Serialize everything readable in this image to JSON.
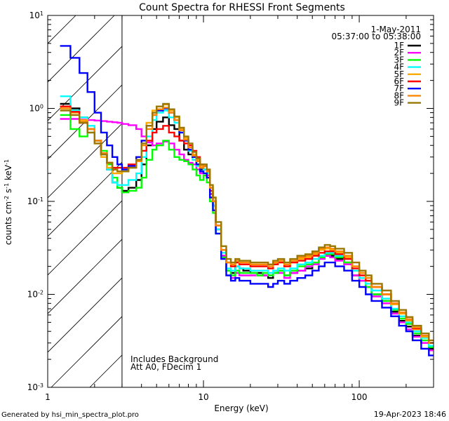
{
  "chart_data": {
    "type": "line",
    "title": "Count Spectra for RHESSI Front Segments",
    "xlabel": "Energy (keV)",
    "ylabel_parts": [
      "counts cm",
      "-2",
      " s",
      "-1",
      " keV",
      "-1"
    ],
    "xscale": "log",
    "yscale": "log",
    "xlim": [
      1,
      300
    ],
    "ylim": [
      0.001,
      10
    ],
    "x_ticks": [
      {
        "v": 1,
        "label": "1"
      },
      {
        "v": 10,
        "label": "10"
      },
      {
        "v": 100,
        "label": "100"
      }
    ],
    "y_ticks": [
      {
        "v": 0.001,
        "base": "10",
        "exp": "-3"
      },
      {
        "v": 0.01,
        "base": "10",
        "exp": "-2"
      },
      {
        "v": 0.1,
        "base": "10",
        "exp": "-1"
      },
      {
        "v": 1,
        "base": "10",
        "exp": "0"
      },
      {
        "v": 10,
        "base": "10",
        "exp": "1"
      }
    ],
    "excluded_region": {
      "x": [
        1,
        3
      ],
      "label": "hatched below 3 keV"
    },
    "annotations": {
      "date": "1-May-2011",
      "time_range": "05:37:00 to 05:38:00",
      "background_note": "Includes Background",
      "att_note": "Att A0, FDecim 1"
    },
    "legend_placement": "top-right",
    "energy_edges": [
      1,
      1.2,
      1.4,
      1.6,
      1.8,
      2,
      2.2,
      2.4,
      2.6,
      2.8,
      3,
      3.3,
      3.7,
      4,
      4.3,
      4.7,
      5,
      5.5,
      6,
      6.5,
      7,
      7.5,
      8,
      8.5,
      9,
      9.5,
      10,
      10.5,
      11,
      11.5,
      12,
      13,
      14,
      15,
      16,
      17,
      18,
      20,
      22,
      24,
      26,
      28,
      30,
      33,
      36,
      40,
      45,
      50,
      55,
      60,
      65,
      70,
      80,
      90,
      100,
      110,
      120,
      140,
      160,
      180,
      200,
      220,
      250,
      280,
      300
    ],
    "series": [
      {
        "name": "1F",
        "color": "#000000",
        "values": [
          null,
          1.12,
          1.0,
          0.8,
          0.6,
          0.45,
          0.32,
          0.22,
          0.16,
          0.14,
          0.13,
          0.14,
          0.17,
          0.25,
          0.4,
          0.6,
          0.72,
          0.8,
          0.66,
          0.6,
          0.45,
          0.36,
          0.32,
          0.3,
          0.25,
          0.22,
          0.24,
          0.2,
          0.12,
          0.09,
          0.05,
          0.026,
          0.018,
          0.017,
          0.02,
          0.019,
          0.018,
          0.017,
          0.017,
          0.016,
          0.015,
          0.017,
          0.018,
          0.016,
          0.017,
          0.018,
          0.019,
          0.021,
          0.025,
          0.026,
          0.026,
          0.024,
          0.022,
          0.016,
          0.014,
          0.012,
          0.01,
          0.0085,
          0.0065,
          0.0052,
          0.0045,
          0.0036,
          0.003,
          0.0026
        ]
      },
      {
        "name": "2F",
        "color": "#ff00ff",
        "values": [
          null,
          0.77,
          0.77,
          0.76,
          0.75,
          0.74,
          0.73,
          0.72,
          0.71,
          0.7,
          0.68,
          0.66,
          0.6,
          0.5,
          0.43,
          0.4,
          0.42,
          0.44,
          0.42,
          0.36,
          0.32,
          0.28,
          0.26,
          0.25,
          0.22,
          0.2,
          0.22,
          0.19,
          0.12,
          0.09,
          0.05,
          0.026,
          0.018,
          0.015,
          0.017,
          0.016,
          0.016,
          0.016,
          0.016,
          0.016,
          0.016,
          0.017,
          0.017,
          0.015,
          0.017,
          0.018,
          0.02,
          0.021,
          0.024,
          0.026,
          0.025,
          0.023,
          0.021,
          0.016,
          0.014,
          0.012,
          0.0095,
          0.008,
          0.0062,
          0.005,
          0.0042,
          0.0035,
          0.003,
          0.0025
        ]
      },
      {
        "name": "3F",
        "color": "#00ff00",
        "values": [
          null,
          0.85,
          0.6,
          0.5,
          0.55,
          0.45,
          0.35,
          0.25,
          0.18,
          0.14,
          0.125,
          0.13,
          0.14,
          0.18,
          0.28,
          0.36,
          0.4,
          0.45,
          0.36,
          0.3,
          0.28,
          0.27,
          0.25,
          0.22,
          0.19,
          0.17,
          0.19,
          0.16,
          0.1,
          0.075,
          0.045,
          0.025,
          0.018,
          0.016,
          0.018,
          0.017,
          0.017,
          0.017,
          0.016,
          0.017,
          0.016,
          0.017,
          0.018,
          0.016,
          0.018,
          0.02,
          0.021,
          0.022,
          0.025,
          0.027,
          0.027,
          0.025,
          0.022,
          0.018,
          0.015,
          0.012,
          0.01,
          0.0085,
          0.0068,
          0.0055,
          0.0048,
          0.0038,
          0.0032,
          0.0027
        ]
      },
      {
        "name": "4F",
        "color": "#00ffff",
        "values": [
          null,
          1.35,
          0.95,
          0.8,
          0.65,
          0.45,
          0.32,
          0.22,
          0.16,
          0.15,
          0.15,
          0.17,
          0.2,
          0.3,
          0.5,
          0.75,
          0.9,
          0.95,
          0.8,
          0.7,
          0.55,
          0.45,
          0.35,
          0.28,
          0.24,
          0.21,
          0.22,
          0.2,
          0.13,
          0.09,
          0.05,
          0.028,
          0.019,
          0.018,
          0.02,
          0.019,
          0.019,
          0.018,
          0.018,
          0.018,
          0.017,
          0.018,
          0.019,
          0.018,
          0.019,
          0.021,
          0.022,
          0.024,
          0.026,
          0.028,
          0.028,
          0.026,
          0.024,
          0.018,
          0.015,
          0.013,
          0.011,
          0.009,
          0.007,
          0.0058,
          0.005,
          0.004,
          0.0034,
          0.0028
        ]
      },
      {
        "name": "5F",
        "color": "#ffaa00",
        "values": [
          null,
          1.05,
          0.9,
          0.75,
          0.6,
          0.42,
          0.3,
          0.23,
          0.2,
          0.2,
          0.21,
          0.24,
          0.3,
          0.45,
          0.7,
          0.95,
          1.05,
          1.1,
          0.95,
          0.8,
          0.6,
          0.48,
          0.4,
          0.32,
          0.28,
          0.24,
          0.25,
          0.22,
          0.14,
          0.1,
          0.055,
          0.03,
          0.022,
          0.02,
          0.022,
          0.021,
          0.021,
          0.02,
          0.02,
          0.02,
          0.019,
          0.021,
          0.022,
          0.02,
          0.022,
          0.024,
          0.025,
          0.027,
          0.03,
          0.031,
          0.03,
          0.028,
          0.025,
          0.02,
          0.017,
          0.014,
          0.012,
          0.01,
          0.0078,
          0.0062,
          0.0052,
          0.0042,
          0.0035,
          0.003
        ]
      },
      {
        "name": "6F",
        "color": "#ff0000",
        "values": [
          null,
          1.05,
          0.92,
          0.7,
          0.6,
          0.45,
          0.33,
          0.26,
          0.23,
          0.23,
          0.23,
          0.25,
          0.28,
          0.35,
          0.45,
          0.55,
          0.6,
          0.65,
          0.55,
          0.5,
          0.45,
          0.42,
          0.4,
          0.35,
          0.3,
          0.25,
          0.24,
          0.21,
          0.13,
          0.1,
          0.055,
          0.03,
          0.022,
          0.02,
          0.022,
          0.021,
          0.021,
          0.02,
          0.02,
          0.02,
          0.019,
          0.021,
          0.022,
          0.02,
          0.022,
          0.023,
          0.024,
          0.026,
          0.028,
          0.029,
          0.029,
          0.027,
          0.024,
          0.019,
          0.016,
          0.014,
          0.012,
          0.01,
          0.008,
          0.0064,
          0.0054,
          0.0043,
          0.0036,
          0.003
        ]
      },
      {
        "name": "7F",
        "color": "#0000ff",
        "values": [
          null,
          4.7,
          3.5,
          2.4,
          1.5,
          0.9,
          0.55,
          0.4,
          0.3,
          0.25,
          0.22,
          0.24,
          0.3,
          0.45,
          0.65,
          0.85,
          0.95,
          1.0,
          0.9,
          0.75,
          0.55,
          0.45,
          0.36,
          0.3,
          0.25,
          0.21,
          0.2,
          0.18,
          0.11,
          0.08,
          0.045,
          0.024,
          0.016,
          0.014,
          0.015,
          0.014,
          0.014,
          0.013,
          0.013,
          0.013,
          0.012,
          0.013,
          0.014,
          0.013,
          0.014,
          0.015,
          0.016,
          0.018,
          0.02,
          0.022,
          0.022,
          0.02,
          0.018,
          0.014,
          0.012,
          0.01,
          0.0085,
          0.0072,
          0.0058,
          0.0046,
          0.004,
          0.0032,
          0.0026,
          0.0022
        ]
      },
      {
        "name": "8F",
        "color": "#ff8800",
        "values": [
          null,
          1.0,
          0.85,
          0.72,
          0.6,
          0.45,
          0.33,
          0.26,
          0.22,
          0.21,
          0.21,
          0.23,
          0.27,
          0.4,
          0.6,
          0.85,
          0.98,
          1.02,
          0.9,
          0.75,
          0.58,
          0.46,
          0.38,
          0.31,
          0.27,
          0.23,
          0.24,
          0.21,
          0.14,
          0.1,
          0.055,
          0.03,
          0.022,
          0.021,
          0.023,
          0.022,
          0.022,
          0.021,
          0.021,
          0.021,
          0.02,
          0.022,
          0.023,
          0.021,
          0.023,
          0.025,
          0.026,
          0.028,
          0.031,
          0.032,
          0.031,
          0.029,
          0.026,
          0.02,
          0.017,
          0.015,
          0.012,
          0.01,
          0.008,
          0.0064,
          0.0054,
          0.0044,
          0.0036,
          0.003
        ]
      },
      {
        "name": "9F",
        "color": "#997700",
        "values": [
          null,
          0.95,
          0.85,
          0.7,
          0.55,
          0.42,
          0.32,
          0.26,
          0.22,
          0.21,
          0.21,
          0.23,
          0.28,
          0.42,
          0.65,
          0.9,
          1.05,
          1.12,
          0.98,
          0.82,
          0.62,
          0.5,
          0.42,
          0.34,
          0.29,
          0.25,
          0.25,
          0.22,
          0.15,
          0.11,
          0.06,
          0.033,
          0.024,
          0.022,
          0.024,
          0.023,
          0.023,
          0.022,
          0.022,
          0.022,
          0.021,
          0.023,
          0.024,
          0.022,
          0.024,
          0.026,
          0.027,
          0.029,
          0.032,
          0.034,
          0.033,
          0.031,
          0.028,
          0.022,
          0.018,
          0.016,
          0.013,
          0.011,
          0.0085,
          0.0068,
          0.0057,
          0.0046,
          0.0038,
          0.0032
        ]
      }
    ]
  },
  "footer": {
    "generated_by": "Generated by hsi_min_spectra_plot.pro",
    "timestamp": "19-Apr-2023 18:46"
  }
}
